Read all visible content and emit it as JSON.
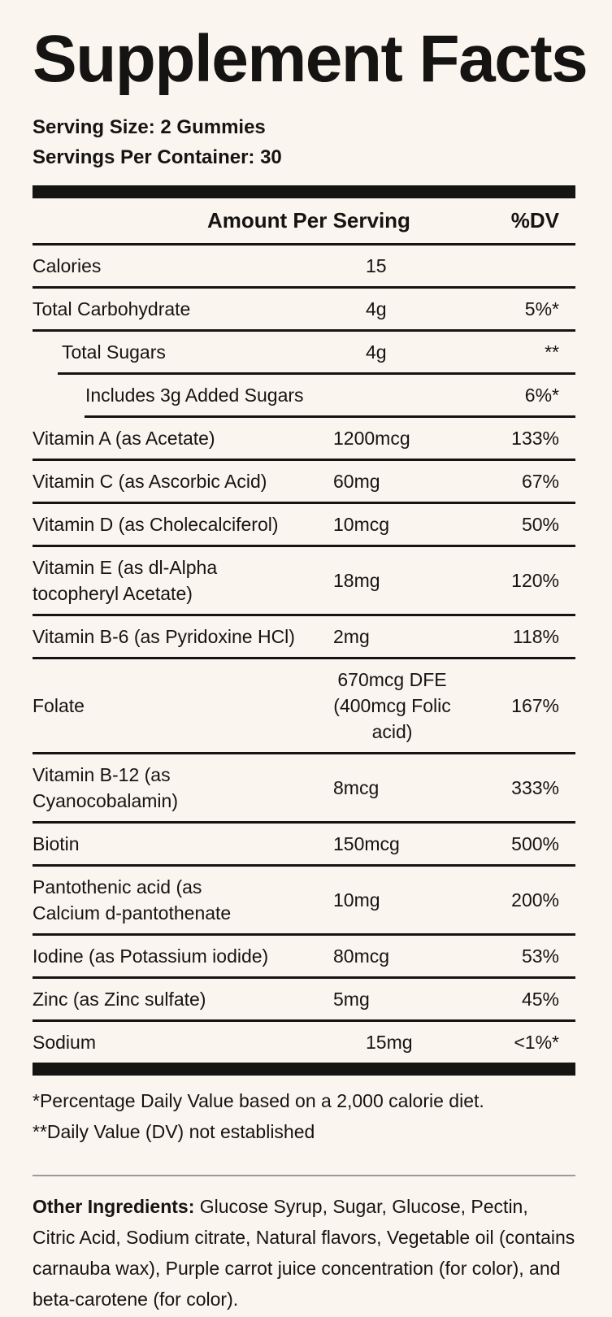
{
  "title": "Supplement Facts",
  "serving": {
    "size_line": "Serving Size: 2 Gummies",
    "per_container_line": "Servings Per Container: 30"
  },
  "table": {
    "amount_header": "Amount Per Serving",
    "dv_header": "%DV",
    "rows": [
      {
        "name": "Calories",
        "amount": "15",
        "dv": "",
        "indent": 0,
        "group": "macro"
      },
      {
        "name": "Total Carbohydrate",
        "amount": "4g",
        "dv": "5%*",
        "indent": 0,
        "group": "macro"
      },
      {
        "name": "Total Sugars",
        "amount": "4g",
        "dv": "**",
        "indent": 1,
        "group": "macro"
      },
      {
        "name": "Includes 3g Added Sugars",
        "amount": "",
        "dv": "6%*",
        "indent": 2,
        "group": "macro"
      },
      {
        "name": "Vitamin A (as Acetate)",
        "amount": "1200mcg",
        "dv": "133%",
        "indent": 0,
        "group": "vitamin"
      },
      {
        "name": "Vitamin C (as Ascorbic Acid)",
        "amount": "60mg",
        "dv": "67%",
        "indent": 0,
        "group": "vitamin"
      },
      {
        "name": "Vitamin D (as Cholecalciferol)",
        "amount": "10mcg",
        "dv": "50%",
        "indent": 0,
        "group": "vitamin"
      },
      {
        "name": "Vitamin E (as dl-Alpha\ntocopheryl Acetate)",
        "amount": "18mg",
        "dv": "120%",
        "indent": 0,
        "group": "vitamin"
      },
      {
        "name": "Vitamin B-6 (as Pyridoxine HCl)",
        "amount": "2mg",
        "dv": "118%",
        "indent": 0,
        "group": "vitamin"
      },
      {
        "name": "Folate",
        "amount": "670mcg DFE\n(400mcg Folic acid)",
        "dv": "167%",
        "indent": 0,
        "group": "vitamin"
      },
      {
        "name": "Vitamin B-12 (as\nCyanocobalamin)",
        "amount": "8mcg",
        "dv": "333%",
        "indent": 0,
        "group": "vitamin"
      },
      {
        "name": "Biotin",
        "amount": "150mcg",
        "dv": "500%",
        "indent": 0,
        "group": "vitamin"
      },
      {
        "name": "Pantothenic acid (as\nCalcium d-pantothenate",
        "amount": "10mg",
        "dv": "200%",
        "indent": 0,
        "group": "vitamin"
      },
      {
        "name": "Iodine (as Potassium iodide)",
        "amount": "80mcg",
        "dv": "53%",
        "indent": 0,
        "group": "vitamin"
      },
      {
        "name": "Zinc (as Zinc sulfate)",
        "amount": "5mg",
        "dv": "45%",
        "indent": 0,
        "group": "vitamin"
      },
      {
        "name": "Sodium",
        "amount": "15mg",
        "dv": "<1%*",
        "indent": 0,
        "group": "macro"
      }
    ]
  },
  "footnotes": [
    "*Percentage Daily Value based on a 2,000 calorie diet.",
    "**Daily Value (DV) not established"
  ],
  "other_ingredients": {
    "label": "Other Ingredients:",
    "text": " Glucose Syrup, Sugar, Glucose, Pectin, Citric Acid, Sodium citrate, Natural flavors, Vegetable oil (contains carnauba wax), Purple carrot juice concentration (for color), and beta-carotene (for color)."
  },
  "colors": {
    "background": "#FAF5EE",
    "ink": "#161412",
    "divider_gray": "#9B9B9B"
  }
}
